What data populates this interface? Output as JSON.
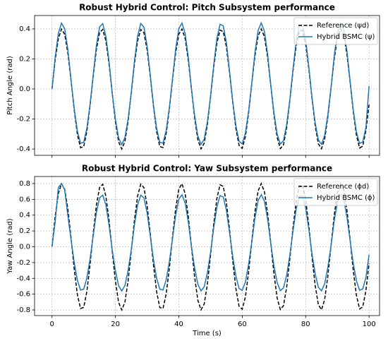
{
  "chart_data": [
    {
      "type": "line",
      "title": "Robust Hybrid Control: Pitch Subsystem performance",
      "y_label": "Pitch Angle (rad)",
      "x": [
        0,
        1,
        2,
        3,
        4,
        5,
        6,
        7,
        8,
        9,
        10,
        11,
        12,
        13,
        14,
        15,
        16,
        17,
        18,
        19,
        20,
        21,
        22,
        23,
        24,
        25,
        26,
        27,
        28,
        29,
        30,
        31,
        32,
        33,
        34,
        35,
        36,
        37,
        38,
        39,
        40,
        41,
        42,
        43,
        44,
        45,
        46,
        47,
        48,
        49,
        50,
        51,
        52,
        53,
        54,
        55,
        56,
        57,
        58,
        59,
        60,
        61,
        62,
        63,
        64,
        65,
        66,
        67,
        68,
        69,
        70,
        71,
        72,
        73,
        74,
        75,
        76,
        77,
        78,
        79,
        80,
        81,
        82,
        83,
        84,
        85,
        86,
        87,
        88,
        89,
        90,
        91,
        92,
        93,
        94,
        95,
        96,
        97,
        98,
        99,
        100
      ],
      "series": [
        {
          "name": "Reference (ψd)",
          "color": "#000000",
          "dash": true,
          "values": [
            0,
            0.192,
            0.336,
            0.399,
            0.364,
            0.239,
            0.056,
            -0.14,
            -0.303,
            -0.391,
            -0.384,
            -0.282,
            -0.112,
            0.086,
            0.263,
            0.375,
            0.396,
            0.319,
            0.165,
            -0.03,
            -0.218,
            -0.352,
            -0.4,
            -0.35,
            -0.215,
            -0.026,
            0.168,
            0.321,
            0.396,
            0.374,
            0.26,
            0.082,
            -0.115,
            -0.285,
            -0.384,
            -0.39,
            -0.3,
            -0.137,
            0.06,
            0.242,
            0.365,
            0.399,
            0.335,
            0.188,
            -0.004,
            -0.195,
            -0.338,
            -0.399,
            -0.362,
            -0.237,
            -0.053,
            0.144,
            0.305,
            0.392,
            0.382,
            0.28,
            0.108,
            -0.089,
            -0.265,
            -0.376,
            -0.395,
            -0.317,
            -0.162,
            0.034,
            0.22,
            0.354,
            0.4,
            0.348,
            0.212,
            0.023,
            -0.171,
            -0.323,
            -0.397,
            -0.373,
            -0.258,
            -0.079,
            0.118,
            0.287,
            0.385,
            0.39,
            0.298,
            0.134,
            -0.063,
            -0.244,
            -0.366,
            -0.398,
            -0.333,
            -0.185,
            0.007,
            0.198,
            0.34,
            0.4,
            0.361,
            0.234,
            0.05,
            -0.147,
            -0.307,
            -0.393,
            -0.381,
            -0.278,
            -0.105
          ]
        },
        {
          "name": "Hybrid BSMC (ψ)",
          "color": "#1f77b4",
          "dash": false,
          "values": [
            0,
            0.211,
            0.37,
            0.439,
            0.4,
            0.263,
            0.062,
            -0.13,
            -0.28,
            -0.362,
            -0.355,
            -0.261,
            -0.103,
            0.095,
            0.289,
            0.413,
            0.435,
            0.351,
            0.181,
            -0.028,
            -0.201,
            -0.326,
            -0.37,
            -0.324,
            -0.199,
            -0.024,
            0.185,
            0.353,
            0.436,
            0.411,
            0.286,
            0.091,
            -0.107,
            -0.263,
            -0.356,
            -0.361,
            -0.278,
            -0.127,
            0.066,
            0.266,
            0.402,
            0.439,
            0.368,
            0.207,
            -0.003,
            -0.18,
            -0.313,
            -0.369,
            -0.335,
            -0.219,
            -0.049,
            0.158,
            0.336,
            0.431,
            0.421,
            0.308,
            0.119,
            -0.083,
            -0.245,
            -0.348,
            -0.366,
            -0.293,
            -0.149,
            0.037,
            0.242,
            0.389,
            0.44,
            0.383,
            0.233,
            0.026,
            -0.158,
            -0.299,
            -0.367,
            -0.345,
            -0.238,
            -0.073,
            0.13,
            0.316,
            0.424,
            0.429,
            0.328,
            0.147,
            -0.058,
            -0.226,
            -0.339,
            -0.369,
            -0.308,
            -0.171,
            0.008,
            0.218,
            0.374,
            0.44,
            0.397,
            0.257,
            0.055,
            -0.136,
            -0.284,
            -0.363,
            -0.353,
            -0.257,
            0.02
          ]
        }
      ],
      "xlim": [
        -5.5,
        103.3
      ],
      "xticks": [
        0,
        20,
        40,
        60,
        80,
        100
      ],
      "show_xtick_labels": false,
      "ylim": [
        -0.442,
        0.489
      ],
      "yticks": [
        -0.4,
        -0.2,
        {
          "value": 0,
          "label": "0.0"
        },
        0.2,
        0.4
      ],
      "grid": true,
      "legend": "upper right"
    },
    {
      "type": "line",
      "title": "Robust Hybrid Control: Yaw Subsystem performance",
      "y_label": "Yaw Angle (rad)",
      "x_label": "Time (s)",
      "x": [
        0,
        1,
        2,
        3,
        4,
        5,
        6,
        7,
        8,
        9,
        10,
        11,
        12,
        13,
        14,
        15,
        16,
        17,
        18,
        19,
        20,
        21,
        22,
        23,
        24,
        25,
        26,
        27,
        28,
        29,
        30,
        31,
        32,
        33,
        34,
        35,
        36,
        37,
        38,
        39,
        40,
        41,
        42,
        43,
        44,
        45,
        46,
        47,
        48,
        49,
        50,
        51,
        52,
        53,
        54,
        55,
        56,
        57,
        58,
        59,
        60,
        61,
        62,
        63,
        64,
        65,
        66,
        67,
        68,
        69,
        70,
        71,
        72,
        73,
        74,
        75,
        76,
        77,
        78,
        79,
        80,
        81,
        82,
        83,
        84,
        85,
        86,
        87,
        88,
        89,
        90,
        91,
        92,
        93,
        94,
        95,
        96,
        97,
        98,
        99,
        100
      ],
      "series": [
        {
          "name": "Reference (ϕd)",
          "color": "#000000",
          "dash": true,
          "values": [
            0,
            0.383,
            0.673,
            0.798,
            0.727,
            0.478,
            0.113,
            -0.281,
            -0.606,
            -0.782,
            -0.767,
            -0.565,
            -0.223,
            0.172,
            0.526,
            0.75,
            0.791,
            0.638,
            0.33,
            -0.06,
            -0.435,
            -0.704,
            -0.8,
            -0.7,
            -0.43,
            -0.053,
            0.336,
            0.642,
            0.793,
            0.748,
            0.52,
            0.165,
            -0.23,
            -0.57,
            -0.769,
            -0.781,
            -0.601,
            -0.274,
            0.12,
            0.484,
            0.73,
            0.798,
            0.67,
            0.377,
            -0.007,
            -0.39,
            -0.677,
            -0.798,
            -0.725,
            -0.474,
            -0.106,
            0.287,
            0.61,
            0.784,
            0.765,
            0.56,
            0.217,
            -0.178,
            -0.53,
            -0.753,
            -0.79,
            -0.634,
            -0.323,
            0.067,
            0.441,
            0.707,
            0.8,
            0.697,
            0.424,
            0.046,
            -0.342,
            -0.646,
            -0.794,
            -0.746,
            -0.515,
            -0.158,
            0.237,
            0.574,
            0.77,
            0.78,
            0.596,
            0.267,
            -0.126,
            -0.489,
            -0.733,
            -0.797,
            -0.666,
            -0.37,
            0.014,
            0.396,
            0.681,
            0.799,
            0.722,
            0.468,
            0.099,
            -0.294,
            -0.614,
            -0.786,
            -0.762,
            -0.555,
            -0.21
          ]
        },
        {
          "name": "Hybrid BSMC (ϕ)",
          "color": "#1f77b4",
          "dash": false,
          "values": [
            0,
            0.316,
            0.75,
            0.8,
            0.72,
            0.395,
            0.093,
            -0.197,
            -0.424,
            -0.548,
            -0.537,
            -0.395,
            -0.156,
            0.142,
            0.434,
            0.619,
            0.653,
            0.527,
            0.272,
            -0.042,
            -0.305,
            -0.493,
            -0.56,
            -0.49,
            -0.301,
            -0.037,
            0.277,
            0.53,
            0.654,
            0.617,
            0.429,
            0.136,
            -0.161,
            -0.399,
            -0.538,
            -0.547,
            -0.421,
            -0.192,
            0.099,
            0.399,
            0.603,
            0.658,
            0.552,
            0.311,
            -0.005,
            -0.273,
            -0.474,
            -0.559,
            -0.507,
            -0.332,
            -0.074,
            0.237,
            0.504,
            0.647,
            0.631,
            0.462,
            0.179,
            -0.125,
            -0.371,
            -0.527,
            -0.553,
            -0.444,
            -0.226,
            0.055,
            0.364,
            0.583,
            0.66,
            0.575,
            0.35,
            0.038,
            -0.24,
            -0.452,
            -0.556,
            -0.522,
            -0.361,
            -0.111,
            0.195,
            0.474,
            0.636,
            0.644,
            0.492,
            0.22,
            -0.088,
            -0.342,
            -0.513,
            -0.558,
            -0.466,
            -0.259,
            0.012,
            0.327,
            0.562,
            0.659,
            0.595,
            0.386,
            0.082,
            -0.206,
            -0.43,
            -0.55,
            -0.534,
            -0.389,
            -0.1
          ]
        }
      ],
      "xlim": [
        -5.5,
        103.3
      ],
      "xticks": [
        0,
        20,
        40,
        60,
        80,
        100
      ],
      "show_xtick_labels": true,
      "ylim": [
        -0.871,
        0.889
      ],
      "yticks": [
        -0.8,
        -0.6,
        -0.4,
        -0.2,
        {
          "value": 0,
          "label": "0.0"
        },
        0.2,
        0.4,
        0.6,
        0.8
      ],
      "grid": true,
      "legend": "upper right"
    }
  ]
}
